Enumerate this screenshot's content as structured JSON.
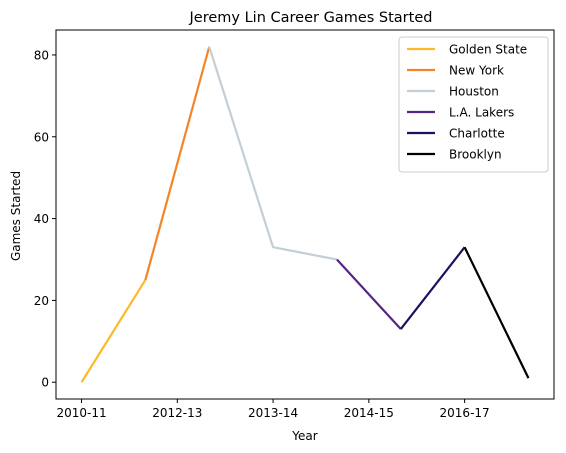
{
  "chart_data": {
    "type": "line",
    "title": "Jeremy Lin Career Games Started",
    "xlabel": "Year",
    "ylabel": "Games Started",
    "x_tick_labels": [
      "2010-11",
      "2012-13",
      "2013-14",
      "2014-15",
      "2016-17"
    ],
    "x_tick_positions": [
      0,
      1.5,
      3,
      4.5,
      6
    ],
    "xlim": [
      -0.4,
      7.4
    ],
    "ylim": [
      -4.1,
      86.1
    ],
    "y_ticks": [
      0,
      20,
      40,
      60,
      80
    ],
    "grid": false,
    "legend_position": "top-right",
    "series": [
      {
        "name": "Golden State",
        "color": "#FDB927",
        "points": [
          [
            0,
            0
          ],
          [
            1,
            25
          ]
        ]
      },
      {
        "name": "New York",
        "color": "#F58426",
        "points": [
          [
            1,
            25
          ],
          [
            2,
            82
          ]
        ]
      },
      {
        "name": "Houston",
        "color": "#C4CED4",
        "points": [
          [
            2,
            82
          ],
          [
            3,
            33
          ],
          [
            4,
            30
          ]
        ]
      },
      {
        "name": "L.A. Lakers",
        "color": "#552583",
        "points": [
          [
            4,
            30
          ],
          [
            5,
            13
          ]
        ]
      },
      {
        "name": "Charlotte",
        "color": "#1D1160",
        "points": [
          [
            5,
            13
          ],
          [
            6,
            33
          ]
        ]
      },
      {
        "name": "Brooklyn",
        "color": "#000000",
        "points": [
          [
            6,
            33
          ],
          [
            7,
            1
          ]
        ]
      }
    ]
  }
}
